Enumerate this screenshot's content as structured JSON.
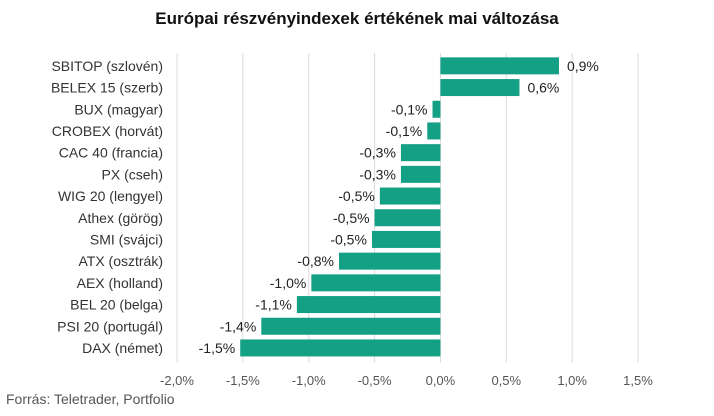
{
  "chart_data": {
    "type": "bar",
    "orientation": "horizontal",
    "title": "Európai részvényindexek értékének mai változása",
    "categories": [
      "SBITOP (szlovén)",
      "BELEX 15 (szerb)",
      "BUX (magyar)",
      "CROBEX (horvát)",
      "CAC 40 (francia)",
      "PX (cseh)",
      "WIG 20 (lengyel)",
      "Athex (görög)",
      "SMI (svájci)",
      "ATX (osztrák)",
      "AEX (holland)",
      "BEL 20 (belga)",
      "PSI 20 (portugál)",
      "DAX (német)"
    ],
    "values": [
      0.9,
      0.6,
      -0.06,
      -0.1,
      -0.3,
      -0.3,
      -0.46,
      -0.5,
      -0.52,
      -0.77,
      -0.98,
      -1.09,
      -1.36,
      -1.52
    ],
    "data_labels": [
      "0,9%",
      "0,6%",
      "-0,1%",
      "-0,1%",
      "-0,3%",
      "-0,3%",
      "-0,5%",
      "-0,5%",
      "-0,5%",
      "-0,8%",
      "-1,0%",
      "-1,1%",
      "-1,4%",
      "-1,5%"
    ],
    "xlim": [
      -2.0,
      1.5
    ],
    "xticks": [
      -2.0,
      -1.5,
      -1.0,
      -0.5,
      0.0,
      0.5,
      1.0,
      1.5
    ],
    "xtick_labels": [
      "-2,0%",
      "-1,5%",
      "-1,0%",
      "-0,5%",
      "0,0%",
      "0,5%",
      "1,0%",
      "1,5%"
    ],
    "grid": "vertical",
    "bar_color": "#14a085",
    "grid_color": "#dcdcdc",
    "source": "Forrás: Teletrader, Portfolio"
  }
}
